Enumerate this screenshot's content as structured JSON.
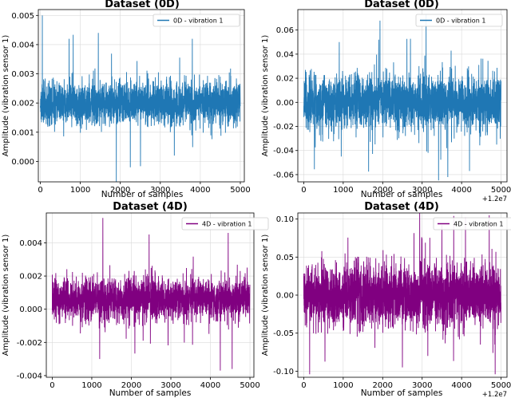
{
  "chart_data": [
    {
      "type": "line",
      "title": "Dataset (0D)",
      "xlabel": "Number of samples",
      "ylabel": "Amplitude (vibration sensor 1)",
      "xlim": [
        -50,
        5100
      ],
      "ylim": [
        -0.0007,
        0.0052
      ],
      "xticks": [
        0,
        1000,
        2000,
        3000,
        4000,
        5000
      ],
      "xtick_labels": [
        "0",
        "1000",
        "2000",
        "3000",
        "4000",
        "5000"
      ],
      "yticks": [
        0.0,
        0.001,
        0.002,
        0.003,
        0.004,
        0.005
      ],
      "ytick_labels": [
        "0.000",
        "0.001",
        "0.002",
        "0.003",
        "0.004",
        "0.005"
      ],
      "x_offset": "",
      "legend_position": "top-right",
      "grid": true,
      "series": [
        {
          "name": "0D - vibration 1",
          "color": "#1f77b4",
          "n_samples": 5000,
          "mean": 0.002,
          "std": 0.00035,
          "peaks": [
            [
              50,
              0.005
            ],
            [
              720,
              0.0042
            ],
            [
              1450,
              0.0044
            ],
            [
              3800,
              0.0042
            ],
            [
              1900,
              -0.0007
            ],
            [
              2250,
              -0.0002
            ],
            [
              3350,
              0.0002
            ]
          ]
        }
      ]
    },
    {
      "type": "line",
      "title": "Dataset (0D)",
      "xlabel": "Number of samples",
      "ylabel": "Amplitude (vibration sensor 1)",
      "xlim": [
        -150,
        5150
      ],
      "ylim": [
        -0.066,
        0.077
      ],
      "xticks": [
        0,
        1000,
        2000,
        3000,
        4000,
        5000
      ],
      "xtick_labels": [
        "0",
        "1000",
        "2000",
        "3000",
        "4000",
        "5000"
      ],
      "yticks": [
        -0.06,
        -0.04,
        -0.02,
        0.0,
        0.02,
        0.04,
        0.06
      ],
      "ytick_labels": [
        "-0.06",
        "-0.04",
        "-0.02",
        "0.00",
        "0.02",
        "0.04",
        "0.06"
      ],
      "x_offset": "+1.2e7",
      "legend_position": "top-right",
      "grid": true,
      "series": [
        {
          "name": "0D - vibration 1",
          "color": "#1f77b4",
          "n_samples": 5000,
          "mean": 0.0,
          "std": 0.011,
          "peaks": [
            [
              3100,
              0.073
            ],
            [
              900,
              0.05
            ],
            [
              1900,
              0.052
            ],
            [
              3650,
              -0.062
            ],
            [
              4200,
              -0.057
            ],
            [
              950,
              -0.045
            ]
          ]
        }
      ]
    },
    {
      "type": "line",
      "title": "Dataset (4D)",
      "xlabel": "Number of samples",
      "ylabel": "Amplitude (vibration sensor 1)",
      "xlim": [
        -150,
        5100
      ],
      "ylim": [
        -0.0041,
        0.0058
      ],
      "xticks": [
        0,
        1000,
        2000,
        3000,
        4000,
        5000
      ],
      "xtick_labels": [
        "0",
        "1000",
        "2000",
        "3000",
        "4000",
        "5000"
      ],
      "yticks": [
        -0.004,
        -0.002,
        0.0,
        0.002,
        0.004
      ],
      "ytick_labels": [
        "-0.004",
        "-0.002",
        "0.000",
        "0.002",
        "0.004"
      ],
      "x_offset": "",
      "legend_position": "top-left",
      "grid": true,
      "series": [
        {
          "name": "4D - vibration 1",
          "color": "#800080",
          "n_samples": 5000,
          "mean": 0.0006,
          "std": 0.0006,
          "peaks": [
            [
              1280,
              0.0055
            ],
            [
              2450,
              0.0045
            ],
            [
              4450,
              0.0046
            ],
            [
              4250,
              -0.0037
            ],
            [
              4550,
              -0.0036
            ],
            [
              1200,
              -0.003
            ]
          ]
        }
      ]
    },
    {
      "type": "line",
      "title": "Dataset (4D)",
      "xlabel": "Number of samples",
      "ylabel": "Amplitude (vibration sensor 1)",
      "xlim": [
        -150,
        5150
      ],
      "ylim": [
        -0.108,
        0.108
      ],
      "xticks": [
        0,
        1000,
        2000,
        3000,
        4000,
        5000
      ],
      "xtick_labels": [
        "0",
        "1000",
        "2000",
        "3000",
        "4000",
        "5000"
      ],
      "yticks": [
        -0.1,
        -0.05,
        0.0,
        0.05,
        0.1
      ],
      "ytick_labels": [
        "-0.10",
        "-0.05",
        "0.00",
        "0.05",
        "0.10"
      ],
      "x_offset": "+1.2e7",
      "legend_position": "top-left",
      "grid": true,
      "series": [
        {
          "name": "4D - vibration 1",
          "color": "#800080",
          "n_samples": 5000,
          "mean": 0.0,
          "std": 0.02,
          "peaks": [
            [
              3800,
              0.104
            ],
            [
              4700,
              0.105
            ],
            [
              150,
              -0.104
            ],
            [
              4850,
              -0.104
            ],
            [
              3500,
              0.092
            ],
            [
              2500,
              -0.095
            ]
          ]
        }
      ]
    }
  ]
}
